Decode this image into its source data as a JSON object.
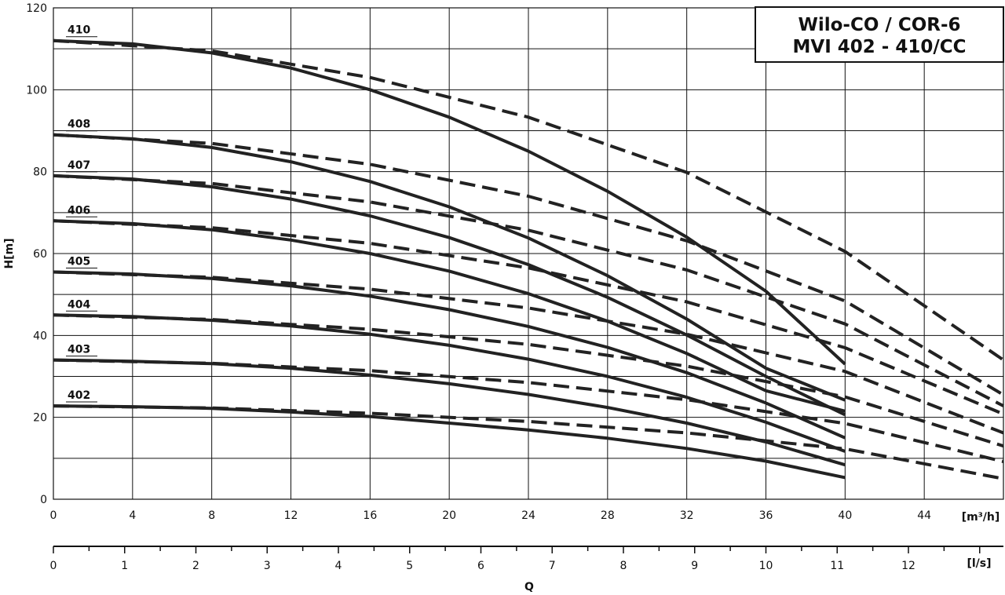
{
  "chart_data": {
    "type": "line",
    "title": [
      "Wilo-CO / COR-6",
      "MVI 402 - 410/CC"
    ],
    "xlabel": "Q",
    "ylabel": "H[m]",
    "x_unit": "[m³/h]",
    "x2_unit": "[l/s]",
    "xlim": [
      0,
      48
    ],
    "ylim": [
      0,
      120
    ],
    "x_ticks": [
      0,
      4,
      8,
      12,
      16,
      20,
      24,
      28,
      32,
      36,
      40,
      44
    ],
    "y_ticks": [
      0,
      20,
      40,
      60,
      80,
      100,
      120
    ],
    "x2_ticks": [
      0,
      1,
      2,
      3,
      4,
      5,
      6,
      7,
      8,
      9,
      10,
      11,
      12
    ],
    "grid": true,
    "series": [
      {
        "name": "402",
        "solid": [
          [
            0,
            22.8
          ],
          [
            4,
            22.6
          ],
          [
            8,
            22.2
          ],
          [
            12,
            21.3
          ],
          [
            16,
            20.2
          ],
          [
            20,
            18.6
          ],
          [
            24,
            16.9
          ],
          [
            28,
            14.9
          ],
          [
            32,
            12.4
          ],
          [
            36,
            9.3
          ],
          [
            40,
            5.3
          ]
        ],
        "dashed": [
          [
            0,
            22.8
          ],
          [
            8,
            22.3
          ],
          [
            16,
            21.0
          ],
          [
            24,
            19.0
          ],
          [
            32,
            16.2
          ],
          [
            40,
            12.3
          ],
          [
            48,
            5.0
          ]
        ]
      },
      {
        "name": "403",
        "solid": [
          [
            0,
            34.0
          ],
          [
            4,
            33.7
          ],
          [
            8,
            33.1
          ],
          [
            12,
            32.0
          ],
          [
            16,
            30.3
          ],
          [
            20,
            28.2
          ],
          [
            24,
            25.6
          ],
          [
            28,
            22.4
          ],
          [
            32,
            18.6
          ],
          [
            36,
            14.0
          ],
          [
            40,
            8.4
          ]
        ],
        "dashed": [
          [
            0,
            34.0
          ],
          [
            8,
            33.2
          ],
          [
            16,
            31.4
          ],
          [
            24,
            28.5
          ],
          [
            32,
            24.3
          ],
          [
            40,
            18.5
          ],
          [
            48,
            9.2
          ]
        ]
      },
      {
        "name": "404",
        "solid": [
          [
            0,
            45.0
          ],
          [
            4,
            44.6
          ],
          [
            8,
            43.7
          ],
          [
            12,
            42.3
          ],
          [
            16,
            40.3
          ],
          [
            20,
            37.6
          ],
          [
            24,
            34.2
          ],
          [
            28,
            30.0
          ],
          [
            32,
            24.9
          ],
          [
            36,
            18.8
          ],
          [
            40,
            11.7
          ]
        ],
        "dashed": [
          [
            0,
            45.0
          ],
          [
            8,
            43.9
          ],
          [
            16,
            41.5
          ],
          [
            24,
            37.8
          ],
          [
            32,
            32.5
          ],
          [
            40,
            25.0
          ],
          [
            48,
            13.0
          ]
        ]
      },
      {
        "name": "405",
        "solid": [
          [
            0,
            55.5
          ],
          [
            4,
            55.0
          ],
          [
            8,
            53.9
          ],
          [
            12,
            52.1
          ],
          [
            16,
            49.6
          ],
          [
            20,
            46.3
          ],
          [
            24,
            42.2
          ],
          [
            28,
            37.1
          ],
          [
            32,
            30.9
          ],
          [
            36,
            23.5
          ],
          [
            40,
            15.0
          ]
        ],
        "dashed": [
          [
            0,
            55.5
          ],
          [
            8,
            54.2
          ],
          [
            16,
            51.3
          ],
          [
            24,
            46.7
          ],
          [
            32,
            40.3
          ],
          [
            40,
            31.2
          ],
          [
            48,
            16.2
          ]
        ]
      },
      {
        "name": "406",
        "solid": [
          [
            0,
            68.0
          ],
          [
            4,
            67.3
          ],
          [
            8,
            65.8
          ],
          [
            12,
            63.3
          ],
          [
            16,
            60.0
          ],
          [
            20,
            55.7
          ],
          [
            24,
            50.2
          ],
          [
            28,
            43.5
          ],
          [
            32,
            35.6
          ],
          [
            36,
            26.5
          ],
          [
            40,
            21.5
          ]
        ],
        "dashed": [
          [
            0,
            68.0
          ],
          [
            8,
            66.3
          ],
          [
            16,
            62.5
          ],
          [
            24,
            56.5
          ],
          [
            32,
            48.2
          ],
          [
            40,
            37.0
          ],
          [
            48,
            20.8
          ]
        ]
      },
      {
        "name": "407",
        "solid": [
          [
            0,
            79.0
          ],
          [
            4,
            78.2
          ],
          [
            8,
            76.3
          ],
          [
            12,
            73.3
          ],
          [
            16,
            69.2
          ],
          [
            20,
            63.9
          ],
          [
            24,
            57.3
          ],
          [
            28,
            49.3
          ],
          [
            32,
            40.1
          ],
          [
            36,
            30.0
          ],
          [
            40,
            20.6
          ]
        ],
        "dashed": [
          [
            0,
            79.0
          ],
          [
            8,
            77.1
          ],
          [
            16,
            72.6
          ],
          [
            24,
            65.7
          ],
          [
            32,
            56.0
          ],
          [
            40,
            42.8
          ],
          [
            48,
            22.8
          ]
        ]
      },
      {
        "name": "408",
        "solid": [
          [
            0,
            89.0
          ],
          [
            4,
            88.0
          ],
          [
            8,
            85.9
          ],
          [
            12,
            82.4
          ],
          [
            16,
            77.6
          ],
          [
            20,
            71.4
          ],
          [
            24,
            63.8
          ],
          [
            28,
            54.6
          ],
          [
            32,
            44.0
          ],
          [
            36,
            32.0
          ],
          [
            40,
            24.2
          ]
        ],
        "dashed": [
          [
            0,
            89.0
          ],
          [
            8,
            86.9
          ],
          [
            16,
            81.8
          ],
          [
            24,
            74.0
          ],
          [
            32,
            63.1
          ],
          [
            40,
            48.4
          ],
          [
            48,
            25.5
          ]
        ]
      },
      {
        "name": "410",
        "solid": [
          [
            0,
            112.0
          ],
          [
            4,
            111.2
          ],
          [
            8,
            109.0
          ],
          [
            12,
            105.3
          ],
          [
            16,
            100.0
          ],
          [
            20,
            93.3
          ],
          [
            24,
            85.0
          ],
          [
            28,
            75.2
          ],
          [
            32,
            64.0
          ],
          [
            36,
            50.8
          ],
          [
            40,
            33.0
          ]
        ],
        "dashed": [
          [
            0,
            112.0
          ],
          [
            8,
            109.5
          ],
          [
            16,
            103.0
          ],
          [
            24,
            93.3
          ],
          [
            32,
            79.8
          ],
          [
            40,
            60.5
          ],
          [
            48,
            34.0
          ]
        ]
      }
    ]
  }
}
